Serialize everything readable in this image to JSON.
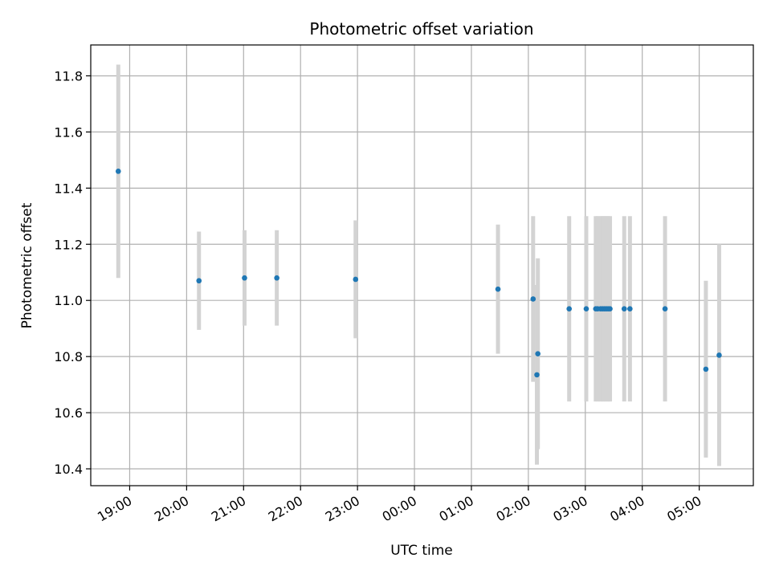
{
  "chart_data": {
    "type": "scatter",
    "title": "Photometric offset variation",
    "xlabel": "UTC time",
    "ylabel": "Photometric offset",
    "x_ticks": [
      "19:00",
      "20:00",
      "21:00",
      "22:00",
      "23:00",
      "00:00",
      "01:00",
      "02:00",
      "03:00",
      "04:00",
      "05:00"
    ],
    "y_ticks": [
      "10.4",
      "10.6",
      "10.8",
      "11.0",
      "11.2",
      "11.4",
      "11.6",
      "11.8"
    ],
    "xlim": [
      "18:19",
      "05:57"
    ],
    "ylim": [
      10.34,
      11.91
    ],
    "grid": true,
    "legend": false,
    "colors": {
      "point": "#1f77b4",
      "errorbar": "#d3d3d3",
      "grid": "#b0b0b0"
    },
    "points": [
      {
        "x": "18:48",
        "y": 11.46,
        "yerr": 0.38
      },
      {
        "x": "20:13",
        "y": 11.07,
        "yerr": 0.175
      },
      {
        "x": "21:01",
        "y": 11.08,
        "yerr": 0.17
      },
      {
        "x": "21:35",
        "y": 11.08,
        "yerr": 0.17
      },
      {
        "x": "22:58",
        "y": 11.075,
        "yerr": 0.21
      },
      {
        "x": "01:28",
        "y": 11.04,
        "yerr": 0.23
      },
      {
        "x": "02:05",
        "y": 11.005,
        "yerr": 0.295
      },
      {
        "x": "02:09",
        "y": 10.735,
        "yerr": 0.32
      },
      {
        "x": "02:10",
        "y": 10.81,
        "yerr": 0.34
      },
      {
        "x": "02:43",
        "y": 10.97,
        "yerr": 0.33
      },
      {
        "x": "03:01",
        "y": 10.97,
        "yerr": 0.33
      },
      {
        "x": "03:11",
        "y": 10.97,
        "yerr": 0.33
      },
      {
        "x": "03:13",
        "y": 10.97,
        "yerr": 0.33
      },
      {
        "x": "03:16",
        "y": 10.97,
        "yerr": 0.33
      },
      {
        "x": "03:18",
        "y": 10.97,
        "yerr": 0.33
      },
      {
        "x": "03:20",
        "y": 10.97,
        "yerr": 0.33
      },
      {
        "x": "03:22",
        "y": 10.97,
        "yerr": 0.33
      },
      {
        "x": "03:24",
        "y": 10.97,
        "yerr": 0.33
      },
      {
        "x": "03:26",
        "y": 10.97,
        "yerr": 0.33
      },
      {
        "x": "03:41",
        "y": 10.97,
        "yerr": 0.33
      },
      {
        "x": "03:47",
        "y": 10.97,
        "yerr": 0.33
      },
      {
        "x": "04:24",
        "y": 10.97,
        "yerr": 0.33
      },
      {
        "x": "05:07",
        "y": 10.755,
        "yerr": 0.315
      },
      {
        "x": "05:21",
        "y": 10.805,
        "yerr": 0.395
      }
    ]
  }
}
